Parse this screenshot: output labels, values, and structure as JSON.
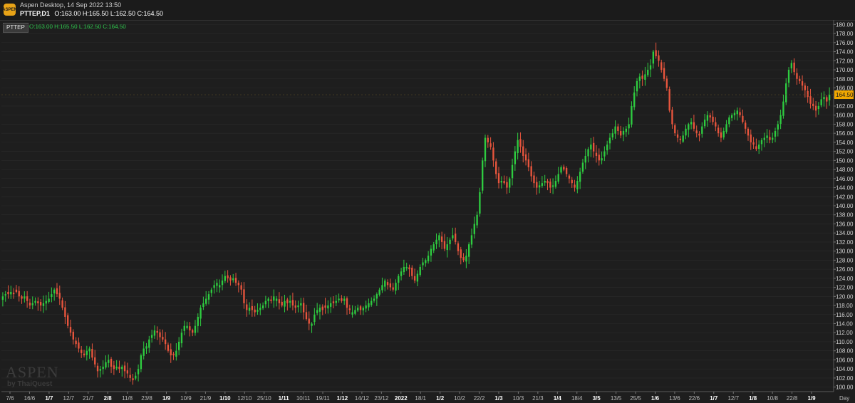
{
  "window": {
    "title": "Aspen Desktop, 14 Sep 2022 13:50",
    "logo_text": "ASPEN"
  },
  "header": {
    "symbol_period": "PTTEP,D1",
    "ohlc": "O:163.00 H:165.50 L:162.50 C:164.50",
    "tag": "PTTEP",
    "ohlc_green": "O:163.00 H:165.50 L:162.50 C:164.50"
  },
  "watermark": {
    "brand": "ASPEN",
    "sub": "by ThaiQuest"
  },
  "colors": {
    "background": "#1e1e1e",
    "up": "#2ecc40",
    "down": "#e8553d",
    "grid": "#2b2b2b",
    "price_label": "#f0a800"
  },
  "chart_data": {
    "type": "candlestick",
    "symbol": "PTTEP",
    "timeframe": "D1",
    "ylim": [
      99,
      181
    ],
    "yticks": [
      100,
      102,
      104,
      106,
      108,
      110,
      112,
      114,
      116,
      118,
      120,
      122,
      124,
      126,
      128,
      130,
      132,
      134,
      136,
      138,
      140,
      142,
      144,
      146,
      148,
      150,
      152,
      154,
      156,
      158,
      160,
      162,
      164,
      166,
      168,
      170,
      172,
      174,
      176,
      178,
      180
    ],
    "last_price": "164.50",
    "period_label": "Day",
    "xticks": [
      {
        "label": "7/6",
        "bold": false
      },
      {
        "label": "16/6",
        "bold": false
      },
      {
        "label": "1/7",
        "bold": true
      },
      {
        "label": "12/7",
        "bold": false
      },
      {
        "label": "21/7",
        "bold": false
      },
      {
        "label": "2/8",
        "bold": true
      },
      {
        "label": "11/8",
        "bold": false
      },
      {
        "label": "23/8",
        "bold": false
      },
      {
        "label": "1/9",
        "bold": true
      },
      {
        "label": "10/9",
        "bold": false
      },
      {
        "label": "21/9",
        "bold": false
      },
      {
        "label": "1/10",
        "bold": true
      },
      {
        "label": "12/10",
        "bold": false
      },
      {
        "label": "25/10",
        "bold": false
      },
      {
        "label": "1/11",
        "bold": true
      },
      {
        "label": "10/11",
        "bold": false
      },
      {
        "label": "19/11",
        "bold": false
      },
      {
        "label": "1/12",
        "bold": true
      },
      {
        "label": "14/12",
        "bold": false
      },
      {
        "label": "23/12",
        "bold": false
      },
      {
        "label": "2022",
        "bold": true
      },
      {
        "label": "18/1",
        "bold": false
      },
      {
        "label": "1/2",
        "bold": true
      },
      {
        "label": "10/2",
        "bold": false
      },
      {
        "label": "22/2",
        "bold": false
      },
      {
        "label": "1/3",
        "bold": true
      },
      {
        "label": "10/3",
        "bold": false
      },
      {
        "label": "21/3",
        "bold": false
      },
      {
        "label": "1/4",
        "bold": true
      },
      {
        "label": "18/4",
        "bold": false
      },
      {
        "label": "3/5",
        "bold": true
      },
      {
        "label": "13/5",
        "bold": false
      },
      {
        "label": "25/5",
        "bold": false
      },
      {
        "label": "1/6",
        "bold": true
      },
      {
        "label": "13/6",
        "bold": false
      },
      {
        "label": "22/6",
        "bold": false
      },
      {
        "label": "1/7",
        "bold": true
      },
      {
        "label": "12/7",
        "bold": false
      },
      {
        "label": "1/8",
        "bold": true
      },
      {
        "label": "10/8",
        "bold": false
      },
      {
        "label": "22/8",
        "bold": false
      },
      {
        "label": "1/9",
        "bold": true
      }
    ],
    "closes": [
      120.0,
      120.5,
      120.5,
      121.0,
      120.5,
      121.0,
      120.0,
      119.5,
      120.0,
      119.0,
      118.0,
      118.5,
      119.0,
      118.5,
      118.0,
      118.5,
      119.0,
      119.5,
      120.5,
      121.5,
      120.5,
      119.5,
      117.5,
      115.5,
      113.5,
      112.0,
      110.5,
      109.5,
      108.5,
      107.5,
      107.0,
      108.0,
      108.5,
      106.5,
      105.0,
      103.5,
      104.0,
      104.5,
      105.5,
      106.0,
      104.5,
      104.0,
      104.5,
      104.0,
      104.5,
      103.5,
      103.0,
      102.0,
      101.5,
      102.5,
      104.0,
      107.0,
      108.5,
      109.0,
      110.5,
      111.5,
      112.5,
      112.0,
      111.0,
      110.5,
      109.5,
      108.0,
      107.0,
      107.0,
      108.0,
      110.0,
      112.0,
      113.5,
      113.5,
      112.5,
      112.0,
      113.5,
      115.5,
      117.5,
      118.5,
      119.5,
      120.5,
      121.5,
      122.5,
      123.0,
      122.5,
      123.5,
      124.5,
      124.0,
      123.5,
      124.0,
      123.0,
      122.5,
      121.5,
      118.5,
      117.0,
      117.5,
      117.0,
      116.5,
      117.0,
      117.5,
      118.0,
      119.0,
      119.5,
      119.0,
      120.0,
      119.5,
      118.5,
      118.0,
      119.0,
      118.5,
      119.0,
      118.0,
      117.5,
      118.0,
      118.5,
      116.5,
      115.0,
      114.0,
      114.0,
      116.0,
      117.0,
      117.5,
      117.0,
      117.5,
      118.0,
      118.5,
      118.5,
      119.0,
      119.5,
      119.0,
      119.5,
      117.5,
      117.0,
      116.5,
      117.0,
      117.5,
      117.0,
      117.5,
      118.0,
      118.5,
      119.0,
      119.5,
      120.5,
      121.5,
      122.5,
      123.5,
      122.5,
      122.0,
      121.5,
      123.0,
      124.5,
      125.5,
      126.5,
      126.5,
      126.0,
      124.5,
      123.5,
      125.0,
      126.5,
      127.5,
      128.0,
      129.0,
      130.5,
      131.5,
      132.5,
      133.5,
      132.0,
      130.5,
      131.5,
      132.5,
      133.5,
      132.0,
      130.0,
      128.5,
      128.0,
      129.0,
      131.5,
      133.5,
      136.0,
      138.0,
      143.0,
      150.0,
      155.0,
      154.0,
      153.0,
      150.0,
      147.0,
      145.0,
      145.5,
      145.0,
      144.0,
      146.0,
      149.0,
      152.0,
      154.5,
      153.0,
      151.0,
      150.0,
      148.5,
      146.5,
      145.0,
      144.0,
      144.5,
      145.0,
      145.5,
      145.0,
      144.0,
      144.5,
      145.5,
      147.0,
      148.5,
      148.0,
      147.0,
      146.0,
      145.0,
      144.0,
      145.5,
      147.5,
      149.5,
      151.0,
      152.5,
      153.5,
      152.0,
      151.0,
      150.0,
      150.5,
      152.0,
      153.5,
      155.0,
      156.0,
      157.5,
      156.5,
      155.5,
      156.5,
      157.0,
      158.0,
      162.0,
      165.0,
      167.5,
      168.5,
      168.0,
      169.0,
      170.0,
      171.0,
      174.0,
      173.0,
      172.0,
      170.0,
      168.0,
      166.0,
      161.0,
      158.0,
      156.0,
      155.0,
      154.5,
      155.5,
      157.0,
      158.0,
      158.5,
      157.0,
      156.0,
      155.5,
      157.5,
      159.0,
      160.0,
      159.5,
      158.5,
      157.5,
      156.0,
      155.0,
      156.5,
      158.0,
      159.5,
      160.0,
      160.5,
      161.0,
      160.0,
      158.5,
      157.0,
      155.5,
      154.0,
      153.5,
      152.5,
      153.5,
      154.5,
      155.0,
      155.5,
      154.5,
      155.0,
      156.5,
      158.0,
      160.0,
      163.0,
      167.0,
      170.0,
      171.5,
      169.5,
      168.0,
      167.5,
      166.5,
      165.5,
      164.0,
      162.5,
      162.0,
      161.0,
      162.0,
      163.5,
      164.0,
      163.0,
      164.5
    ]
  }
}
